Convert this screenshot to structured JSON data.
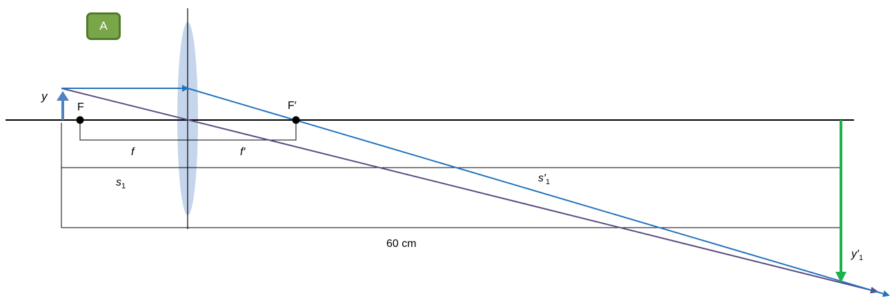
{
  "badge": {
    "text": "A",
    "color": "#7aa64a",
    "border": "#4f7a2b"
  },
  "labels": {
    "object": "y",
    "focus_object": "F",
    "focus_image": "F′",
    "focal_length": "f",
    "focal_length_image": "f′",
    "object_distance": "s",
    "object_distance_sub": "1",
    "image_distance": "s′",
    "image_distance_sub": "1",
    "total_distance": "60 cm",
    "image": "y′",
    "image_sub": "1"
  },
  "colors": {
    "lens": "#c5d5ec",
    "axis": "#000000",
    "parallel_ray": "#2272bd",
    "chief_ray": "#5b4b80",
    "object_arrow": "#4f83c2",
    "image_arrow": "#1db14b"
  }
}
